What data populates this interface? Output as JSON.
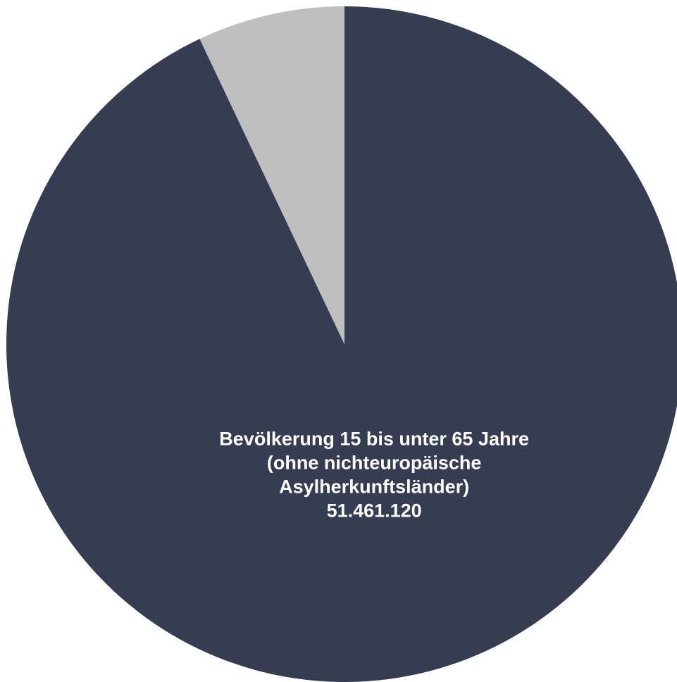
{
  "chart_data": {
    "type": "pie",
    "start_angle": "12 o'clock",
    "direction": "clockwise",
    "legend": "none",
    "slices": [
      {
        "label_lines": [
          "Bevölkerung 15 bis unter 65 Jahre",
          "(ohne nichteuropäische",
          "Asylherkunftsländer)",
          "51.461.120"
        ],
        "value": 51461120,
        "color": "#363d52"
      },
      {
        "label_lines": [],
        "value": 3900000,
        "color": "#bfbfbf"
      }
    ]
  }
}
